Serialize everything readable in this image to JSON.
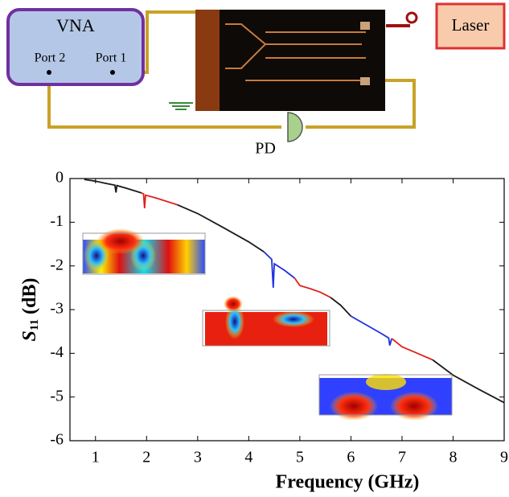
{
  "diagram": {
    "vna": "VNA",
    "port2": "Port 2",
    "port1": "Port 1",
    "laser": "Laser",
    "pd": "PD"
  },
  "chart_data": {
    "type": "line",
    "xlabel": "Frequency (GHz)",
    "ylabel": [
      "S",
      "11",
      "(dB)"
    ],
    "xlim": [
      0.5,
      9
    ],
    "xticks": [
      1,
      2,
      3,
      4,
      5,
      6,
      7,
      8,
      9
    ],
    "ylim": [
      -6,
      0
    ],
    "yticks": [
      0,
      -1,
      -2,
      -3,
      -4,
      -5,
      -6
    ],
    "series": [
      {
        "color": "#1a1a1a",
        "x": [
          0.78,
          1.0,
          1.2,
          1.38,
          1.4,
          1.42,
          1.6,
          1.9
        ],
        "values": [
          -0.02,
          -0.06,
          -0.11,
          -0.15,
          -0.32,
          -0.16,
          -0.22,
          -0.33
        ]
      },
      {
        "color": "#e0201c",
        "x": [
          1.9,
          1.94,
          1.96,
          1.98,
          2.2,
          2.6
        ],
        "values": [
          -0.33,
          -0.35,
          -0.68,
          -0.38,
          -0.45,
          -0.6
        ]
      },
      {
        "color": "#1a1a1a",
        "x": [
          2.6,
          3.0,
          3.5,
          4.0,
          4.3
        ],
        "values": [
          -0.6,
          -0.8,
          -1.12,
          -1.45,
          -1.68
        ]
      },
      {
        "color": "#2030e0",
        "x": [
          4.3,
          4.45,
          4.48,
          4.5,
          4.7,
          4.9
        ],
        "values": [
          -1.68,
          -1.85,
          -2.5,
          -1.95,
          -2.1,
          -2.28
        ]
      },
      {
        "color": "#e0201c",
        "x": [
          4.9,
          5.0,
          5.2,
          5.4,
          5.6
        ],
        "values": [
          -2.28,
          -2.45,
          -2.52,
          -2.6,
          -2.72
        ]
      },
      {
        "color": "#1a1a1a",
        "x": [
          5.6,
          5.8,
          6.0
        ],
        "values": [
          -2.72,
          -2.9,
          -3.15
        ]
      },
      {
        "color": "#2030e0",
        "x": [
          6.0,
          6.3,
          6.6,
          6.74,
          6.76,
          6.8
        ],
        "values": [
          -3.15,
          -3.35,
          -3.55,
          -3.65,
          -3.82,
          -3.66
        ]
      },
      {
        "color": "#e0201c",
        "x": [
          6.8,
          7.0,
          7.2,
          7.4,
          7.6
        ],
        "values": [
          -3.66,
          -3.85,
          -3.95,
          -4.05,
          -4.15
        ]
      },
      {
        "color": "#1a1a1a",
        "x": [
          7.6,
          8.0,
          8.5,
          9.0
        ],
        "values": [
          -4.15,
          -4.5,
          -4.82,
          -5.13
        ]
      }
    ]
  }
}
